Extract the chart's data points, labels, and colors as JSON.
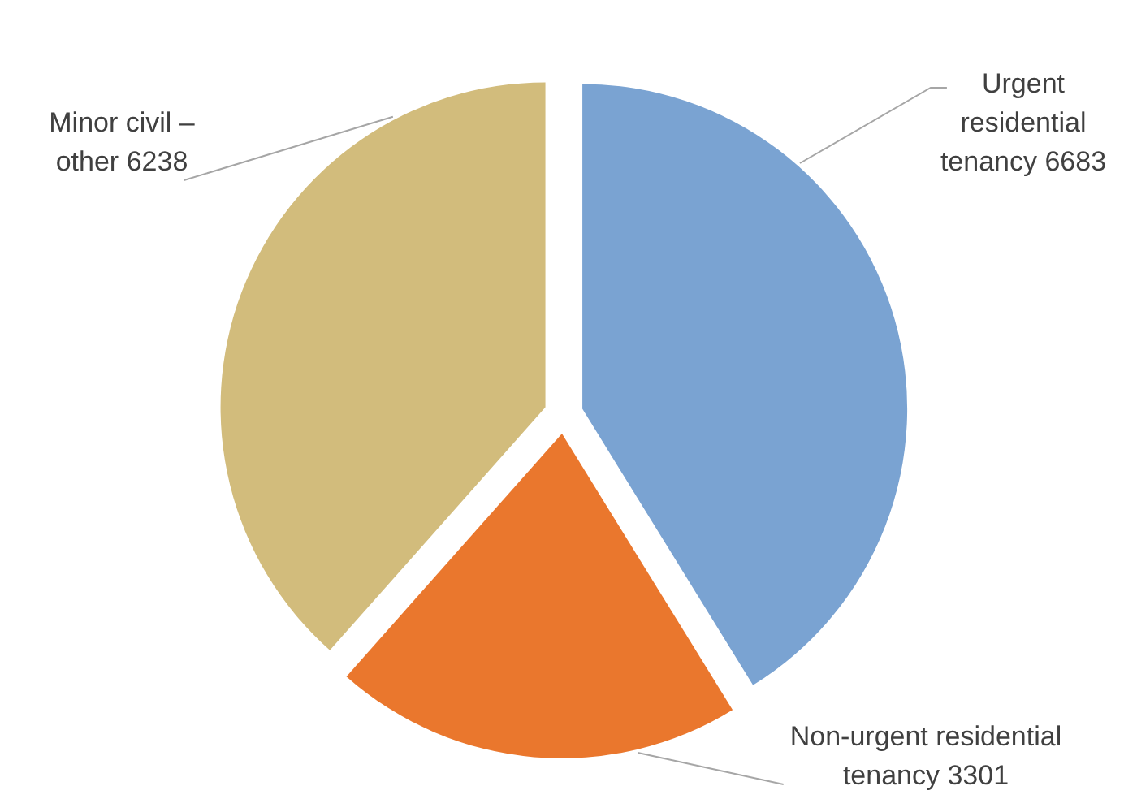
{
  "chart_data": {
    "type": "pie",
    "categories": [
      "Urgent residential tenancy",
      "Non-urgent residential tenancy",
      "Minor civil – other"
    ],
    "values": [
      6683,
      3301,
      6238
    ],
    "colors": [
      "#7aa3d2",
      "#ea772d",
      "#d2bc7c"
    ],
    "data_labels": true
  }
}
